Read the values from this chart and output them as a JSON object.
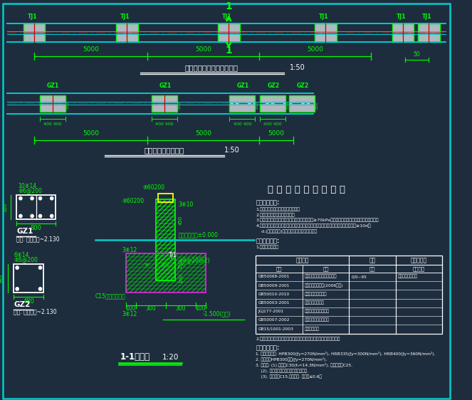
{
  "bg_color": "#1e2d3e",
  "green": "#00ff00",
  "cyan": "#00cccc",
  "red": "#cc0000",
  "magenta": "#ff00ff",
  "yellow": "#ffff00",
  "white": "#ffffff",
  "title1": "通透式围墙局部基础平面图",
  "title2": "围墙柱位平面布置图",
  "title3": "1-1剖面图",
  "title4": "混 凝 土 结 构 设 计 说 明",
  "scale1": "1:50",
  "scale2": "1:20"
}
